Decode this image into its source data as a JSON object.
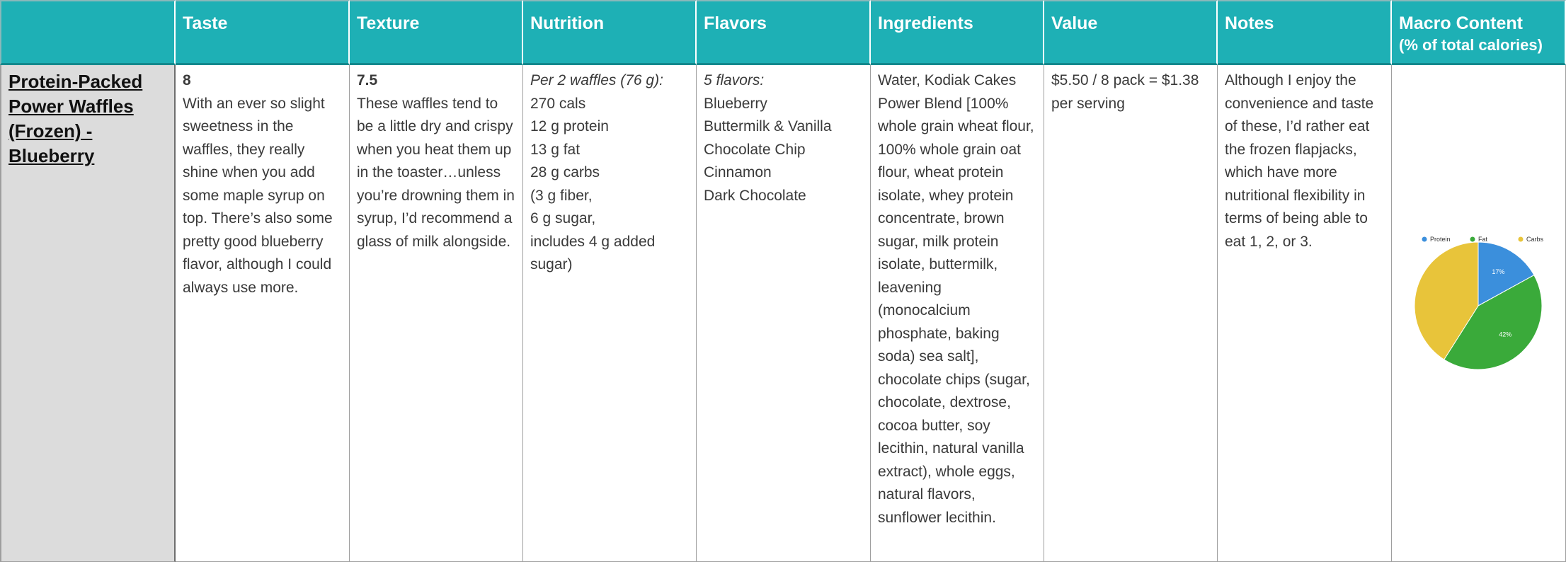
{
  "header": {
    "columns": [
      "",
      "Taste",
      "Texture",
      "Nutrition",
      "Flavors",
      "Ingredients",
      "Value",
      "Notes",
      "Macro Content"
    ],
    "macro_subtitle": "(% of total calories)"
  },
  "row": {
    "product": "Protein-Packed Power Waffles (Frozen) - Blueberry",
    "taste": {
      "score": "8",
      "text": "With an ever so slight sweetness in the waffles, they really shine when you add some maple syrup on top.  There’s also some pretty good blueberry flavor, although I could always use more."
    },
    "texture": {
      "score": "7.5",
      "text": "These waffles tend to be a little dry and crispy when you heat them up in the toaster…unless you’re drowning them in syrup, I’d recommend a glass of milk alongside."
    },
    "nutrition": {
      "serving": "Per 2 waffles (76 g):",
      "lines": [
        "270 cals",
        "12 g protein",
        "13 g fat",
        "28 g carbs",
        "(3 g fiber,",
        "6 g sugar,",
        "includes 4 g added sugar)"
      ]
    },
    "flavors": {
      "heading": "5 flavors:",
      "items": [
        "Blueberry",
        "Buttermilk & Vanilla",
        "Chocolate Chip",
        "Cinnamon",
        "Dark Chocolate"
      ]
    },
    "ingredients": "Water, Kodiak Cakes Power Blend [100% whole grain wheat flour, 100% whole grain oat flour, wheat protein isolate, whey protein concentrate, brown sugar, milk protein isolate, buttermilk, leavening (monocalcium phosphate, baking soda) sea salt], chocolate chips (sugar, chocolate, dextrose, cocoa butter, soy lecithin, natural vanilla extract), whole eggs, natural flavors, sunflower lecithin.",
    "value": "$5.50 / 8 pack = $1.38 per serving",
    "notes": "Although I enjoy the convenience and taste of these, I’d rather eat the frozen flapjacks, which have more nutritional flexibility in terms of being able to eat 1, 2, or 3."
  },
  "chart_data": {
    "type": "pie",
    "title": "",
    "categories": [
      "Protein",
      "Fat",
      "Carbs"
    ],
    "values": [
      17,
      42,
      41
    ],
    "labels": [
      "17%",
      "42%",
      ""
    ],
    "colors": [
      "#3b8fdc",
      "#3aaa3a",
      "#e8c43a"
    ],
    "legend": "top"
  }
}
